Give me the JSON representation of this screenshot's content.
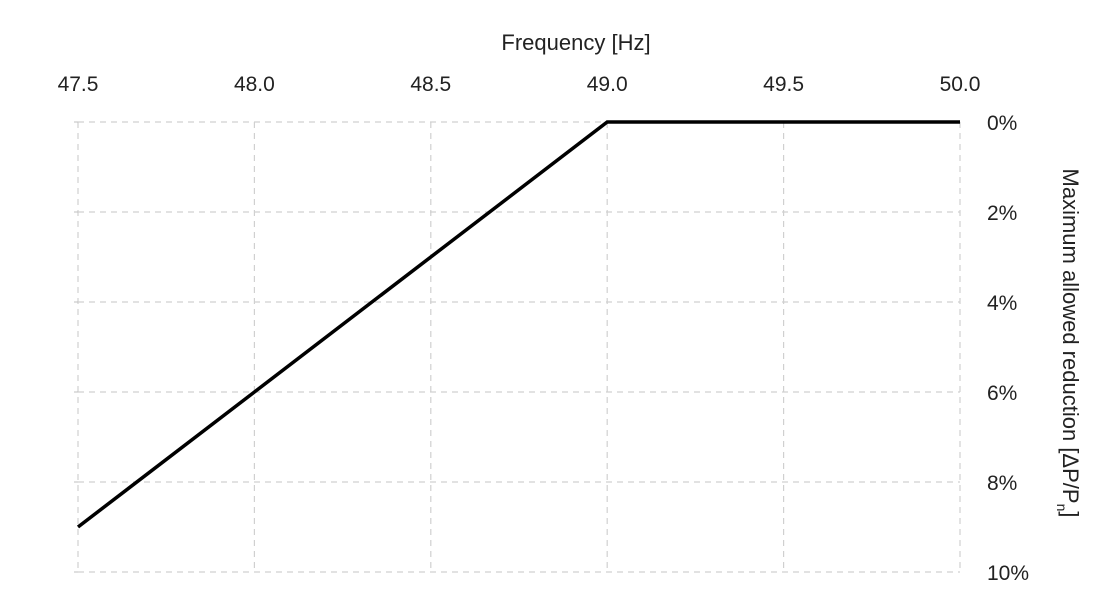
{
  "chart_data": {
    "type": "line",
    "title": "",
    "xlabel": "Frequency [Hz]",
    "ylabel_text": "Maximum allowed reduction [ΔP/P",
    "ylabel_subscript": "n",
    "ylabel_close": "]",
    "x_axis_position": "top",
    "y_axis_position": "right",
    "y_axis_inverted": true,
    "xlim": [
      47.5,
      50.0
    ],
    "ylim": [
      0,
      10
    ],
    "x_ticks": [
      47.5,
      48.0,
      48.5,
      49.0,
      49.5,
      50.0
    ],
    "x_tick_labels": [
      "47.5",
      "48.0",
      "48.5",
      "49.0",
      "49.5",
      "50.0"
    ],
    "y_ticks": [
      0,
      2,
      4,
      6,
      8,
      10
    ],
    "y_tick_labels": [
      "0%",
      "2%",
      "4%",
      "6%",
      "8%",
      "10%"
    ],
    "grid": true,
    "grid_style": "dashed",
    "series": [
      {
        "color": "#000000",
        "points": [
          {
            "x": 47.5,
            "y": 9
          },
          {
            "x": 49.0,
            "y": 0
          },
          {
            "x": 50.0,
            "y": 0
          }
        ]
      }
    ]
  }
}
